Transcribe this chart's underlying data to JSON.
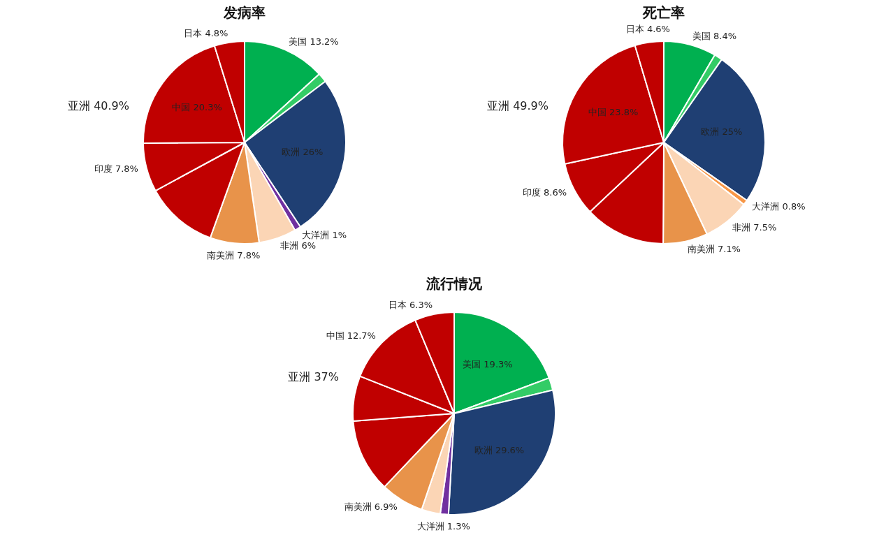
{
  "chart_data": [
    {
      "type": "pie",
      "title": "发病率",
      "categories": [
        "美国",
        null,
        "欧洲",
        "大洋洲",
        "非洲",
        "南美洲",
        null,
        "印度",
        "中国",
        "日本"
      ],
      "values": [
        13.2,
        1.5,
        26,
        1,
        6,
        7.8,
        11.6,
        7.8,
        20.3,
        4.8
      ],
      "value_labels": [
        "13.2%",
        null,
        "26%",
        "1%",
        "6%",
        "7.8%",
        null,
        "7.8%",
        "20.3%",
        "4.8%"
      ],
      "colors": [
        "#00b050",
        "#33cc66",
        "#1f3f73",
        "#7030a0",
        "#fbd5b5",
        "#e8934a",
        "#c00000",
        "#c00000",
        "#c00000",
        "#c00000"
      ],
      "annotations": [
        "亚洲 40.9%"
      ]
    },
    {
      "type": "pie",
      "title": "死亡率",
      "categories": [
        "美国",
        null,
        "欧洲",
        "大洋洲",
        "非洲",
        "南美洲",
        null,
        "印度",
        "中国",
        "日本"
      ],
      "values": [
        8.4,
        1.3,
        25,
        0.8,
        7.5,
        7.1,
        12.9,
        8.6,
        23.8,
        4.6
      ],
      "value_labels": [
        "8.4%",
        null,
        "25%",
        "0.8%",
        "7.5%",
        "7.1%",
        null,
        "8.6%",
        "23.8%",
        "4.6%"
      ],
      "colors": [
        "#00b050",
        "#33cc66",
        "#1f3f73",
        "#f79646",
        "#fbd5b5",
        "#e8934a",
        "#c00000",
        "#c00000",
        "#c00000",
        "#c00000"
      ],
      "annotations": [
        "亚洲 49.9%"
      ]
    },
    {
      "type": "pie",
      "title": "流行情况",
      "categories": [
        "美国",
        null,
        "欧洲",
        "大洋洲",
        null,
        "南美洲",
        null,
        null,
        "中国",
        "日本"
      ],
      "values": [
        19.3,
        2.0,
        29.6,
        1.3,
        3.0,
        6.9,
        11.7,
        7.2,
        12.7,
        6.3
      ],
      "value_labels": [
        "19.3%",
        null,
        "29.6%",
        "1.3%",
        null,
        "6.9%",
        null,
        null,
        "12.7%",
        "6.3%"
      ],
      "colors": [
        "#00b050",
        "#33cc66",
        "#1f3f73",
        "#7030a0",
        "#fbd5b5",
        "#e8934a",
        "#c00000",
        "#c00000",
        "#c00000",
        "#c00000"
      ],
      "annotations": [
        "亚洲 37%"
      ]
    }
  ]
}
